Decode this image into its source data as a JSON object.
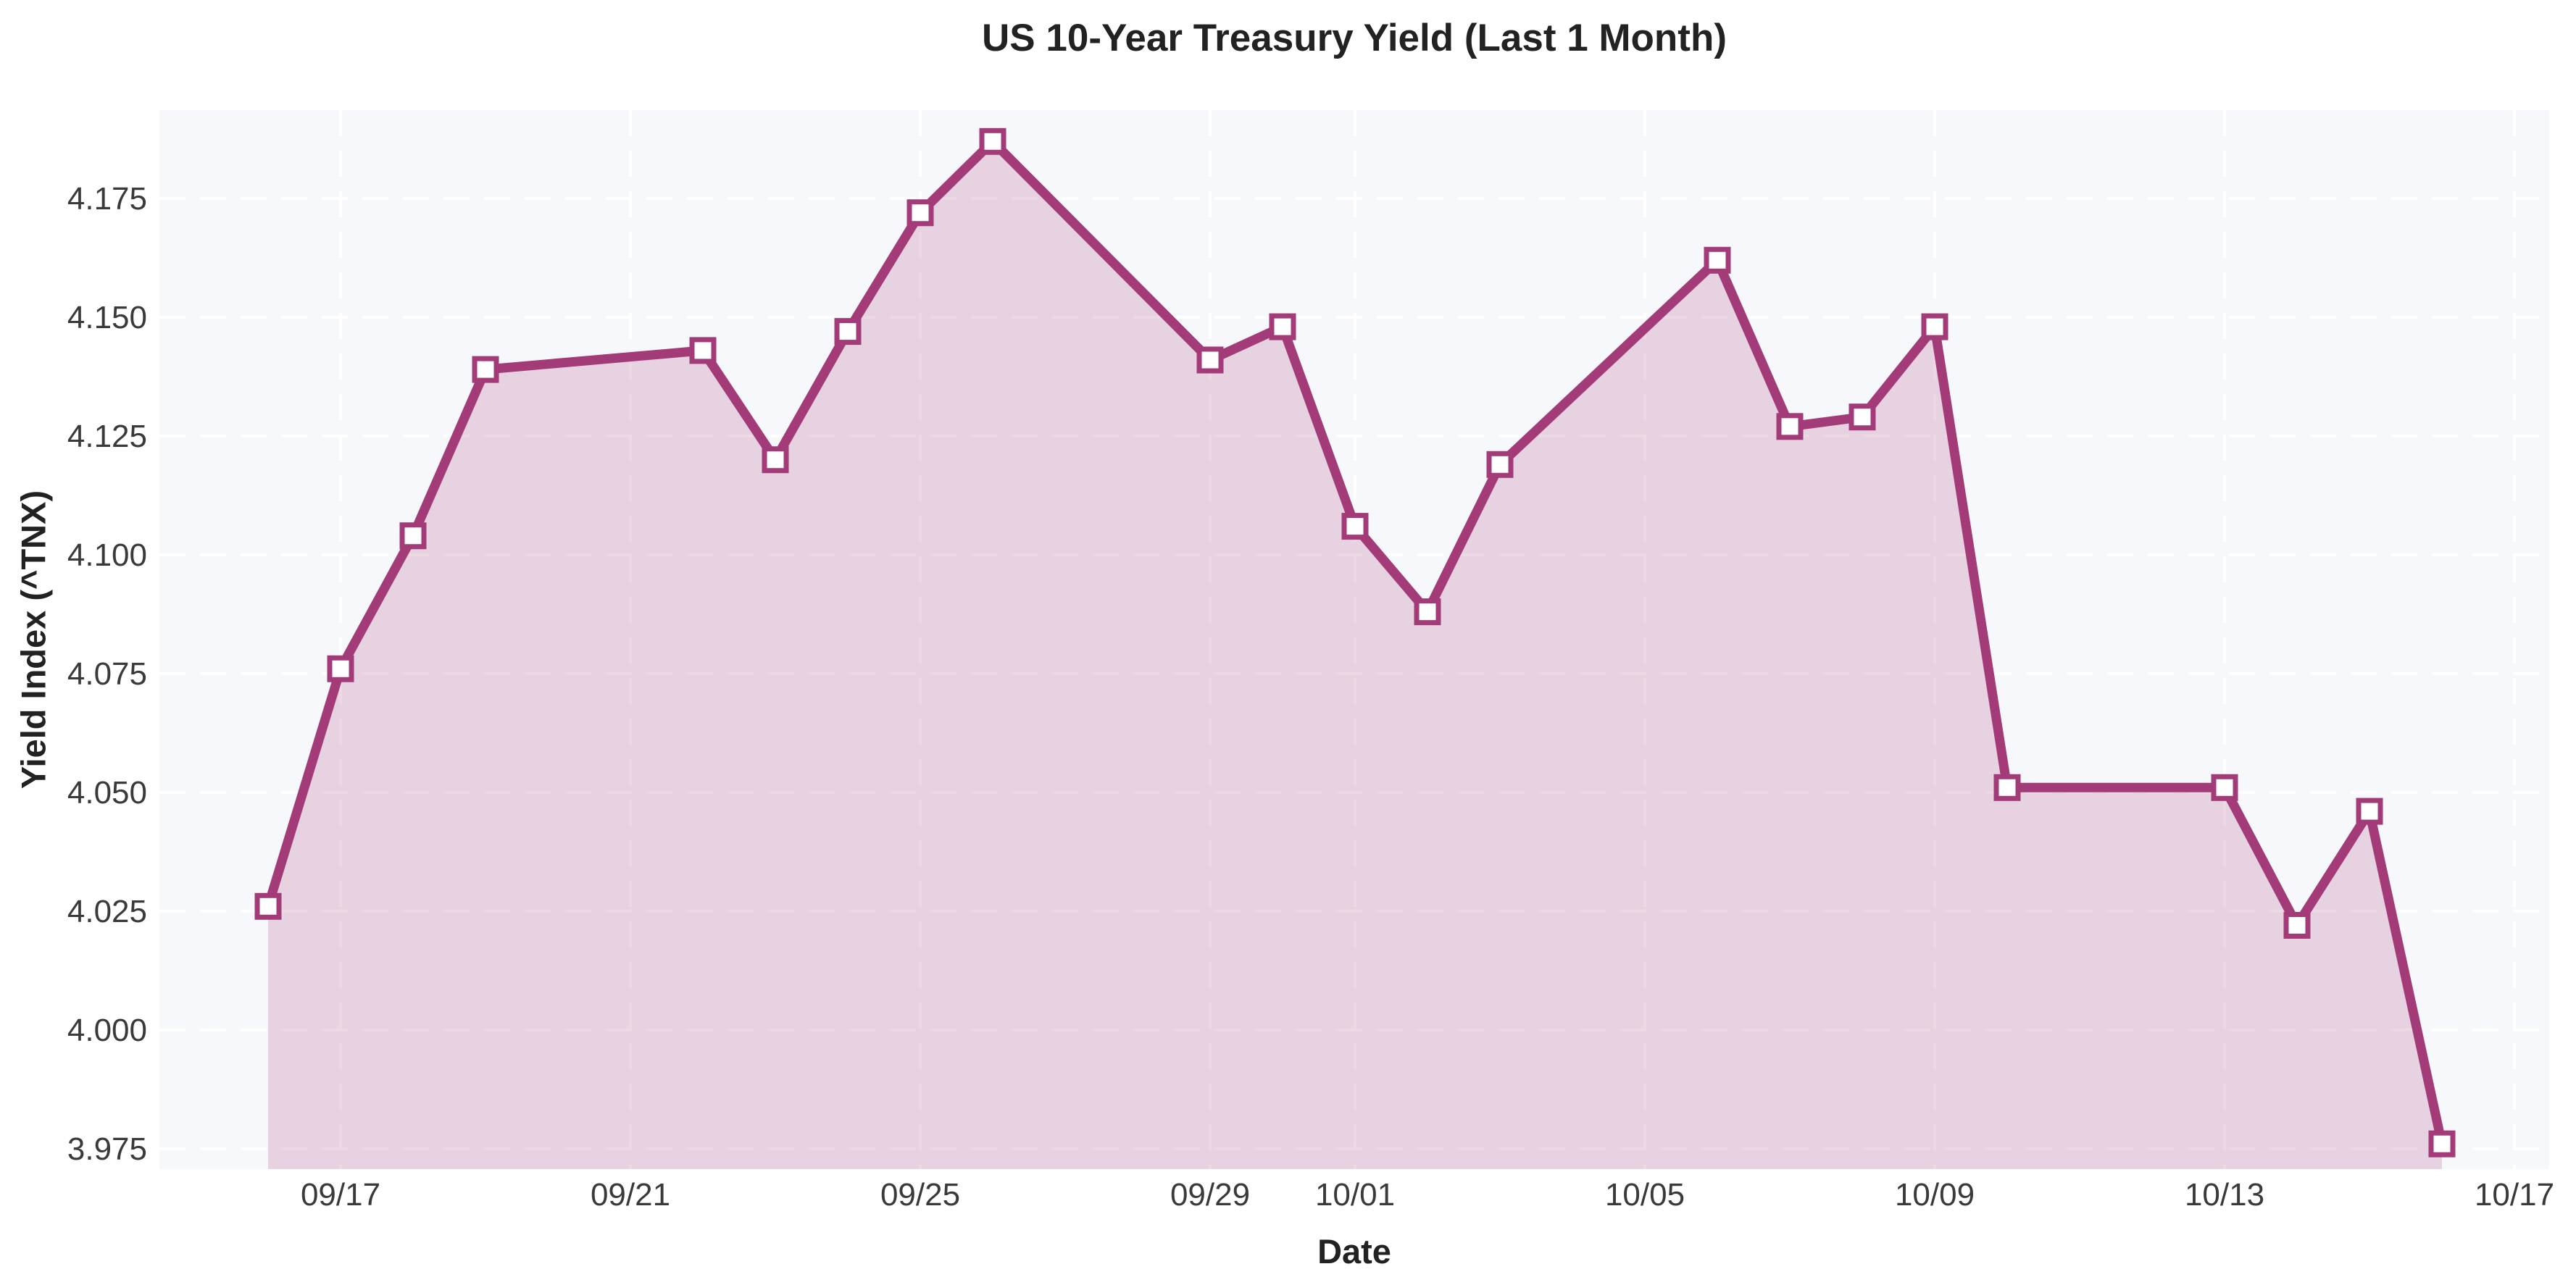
{
  "chart_data": {
    "type": "area",
    "title": "US 10-Year Treasury Yield (Last 1 Month)",
    "xlabel": "Date",
    "ylabel": "Yield Index (^TNX)",
    "x": [
      "09/16",
      "09/17",
      "09/18",
      "09/19",
      "09/22",
      "09/23",
      "09/24",
      "09/25",
      "09/26",
      "09/29",
      "09/30",
      "10/01",
      "10/02",
      "10/03",
      "10/06",
      "10/07",
      "10/08",
      "10/09",
      "10/10",
      "10/13",
      "10/14",
      "10/15",
      "10/16"
    ],
    "values": [
      4.026,
      4.076,
      4.104,
      4.139,
      4.143,
      4.12,
      4.147,
      4.172,
      4.187,
      4.141,
      4.148,
      4.106,
      4.088,
      4.119,
      4.162,
      4.127,
      4.129,
      4.148,
      4.051,
      4.051,
      4.022,
      4.046,
      3.976
    ],
    "x_tick_labels": [
      "09/17",
      "09/21",
      "09/25",
      "09/29",
      "10/01",
      "10/05",
      "10/09",
      "10/13",
      "10/17"
    ],
    "y_ticks": [
      3.975,
      4.0,
      4.025,
      4.05,
      4.075,
      4.1,
      4.125,
      4.15,
      4.175
    ],
    "ylim": [
      3.9707,
      4.1936
    ],
    "grid": "white dashed, horizontal and vertical",
    "legend": "none",
    "marker": "square, white face with magenta edge"
  },
  "colors": {
    "line": "#a43b79",
    "fill": "rgba(164,59,121,0.20)",
    "marker_face": "#ffffff",
    "plot_background": "#f7f8fb",
    "grid": "#ffffff",
    "title_text": "#222222",
    "tick_text": "#3a3a3a",
    "figure_background": "#ffffff"
  }
}
